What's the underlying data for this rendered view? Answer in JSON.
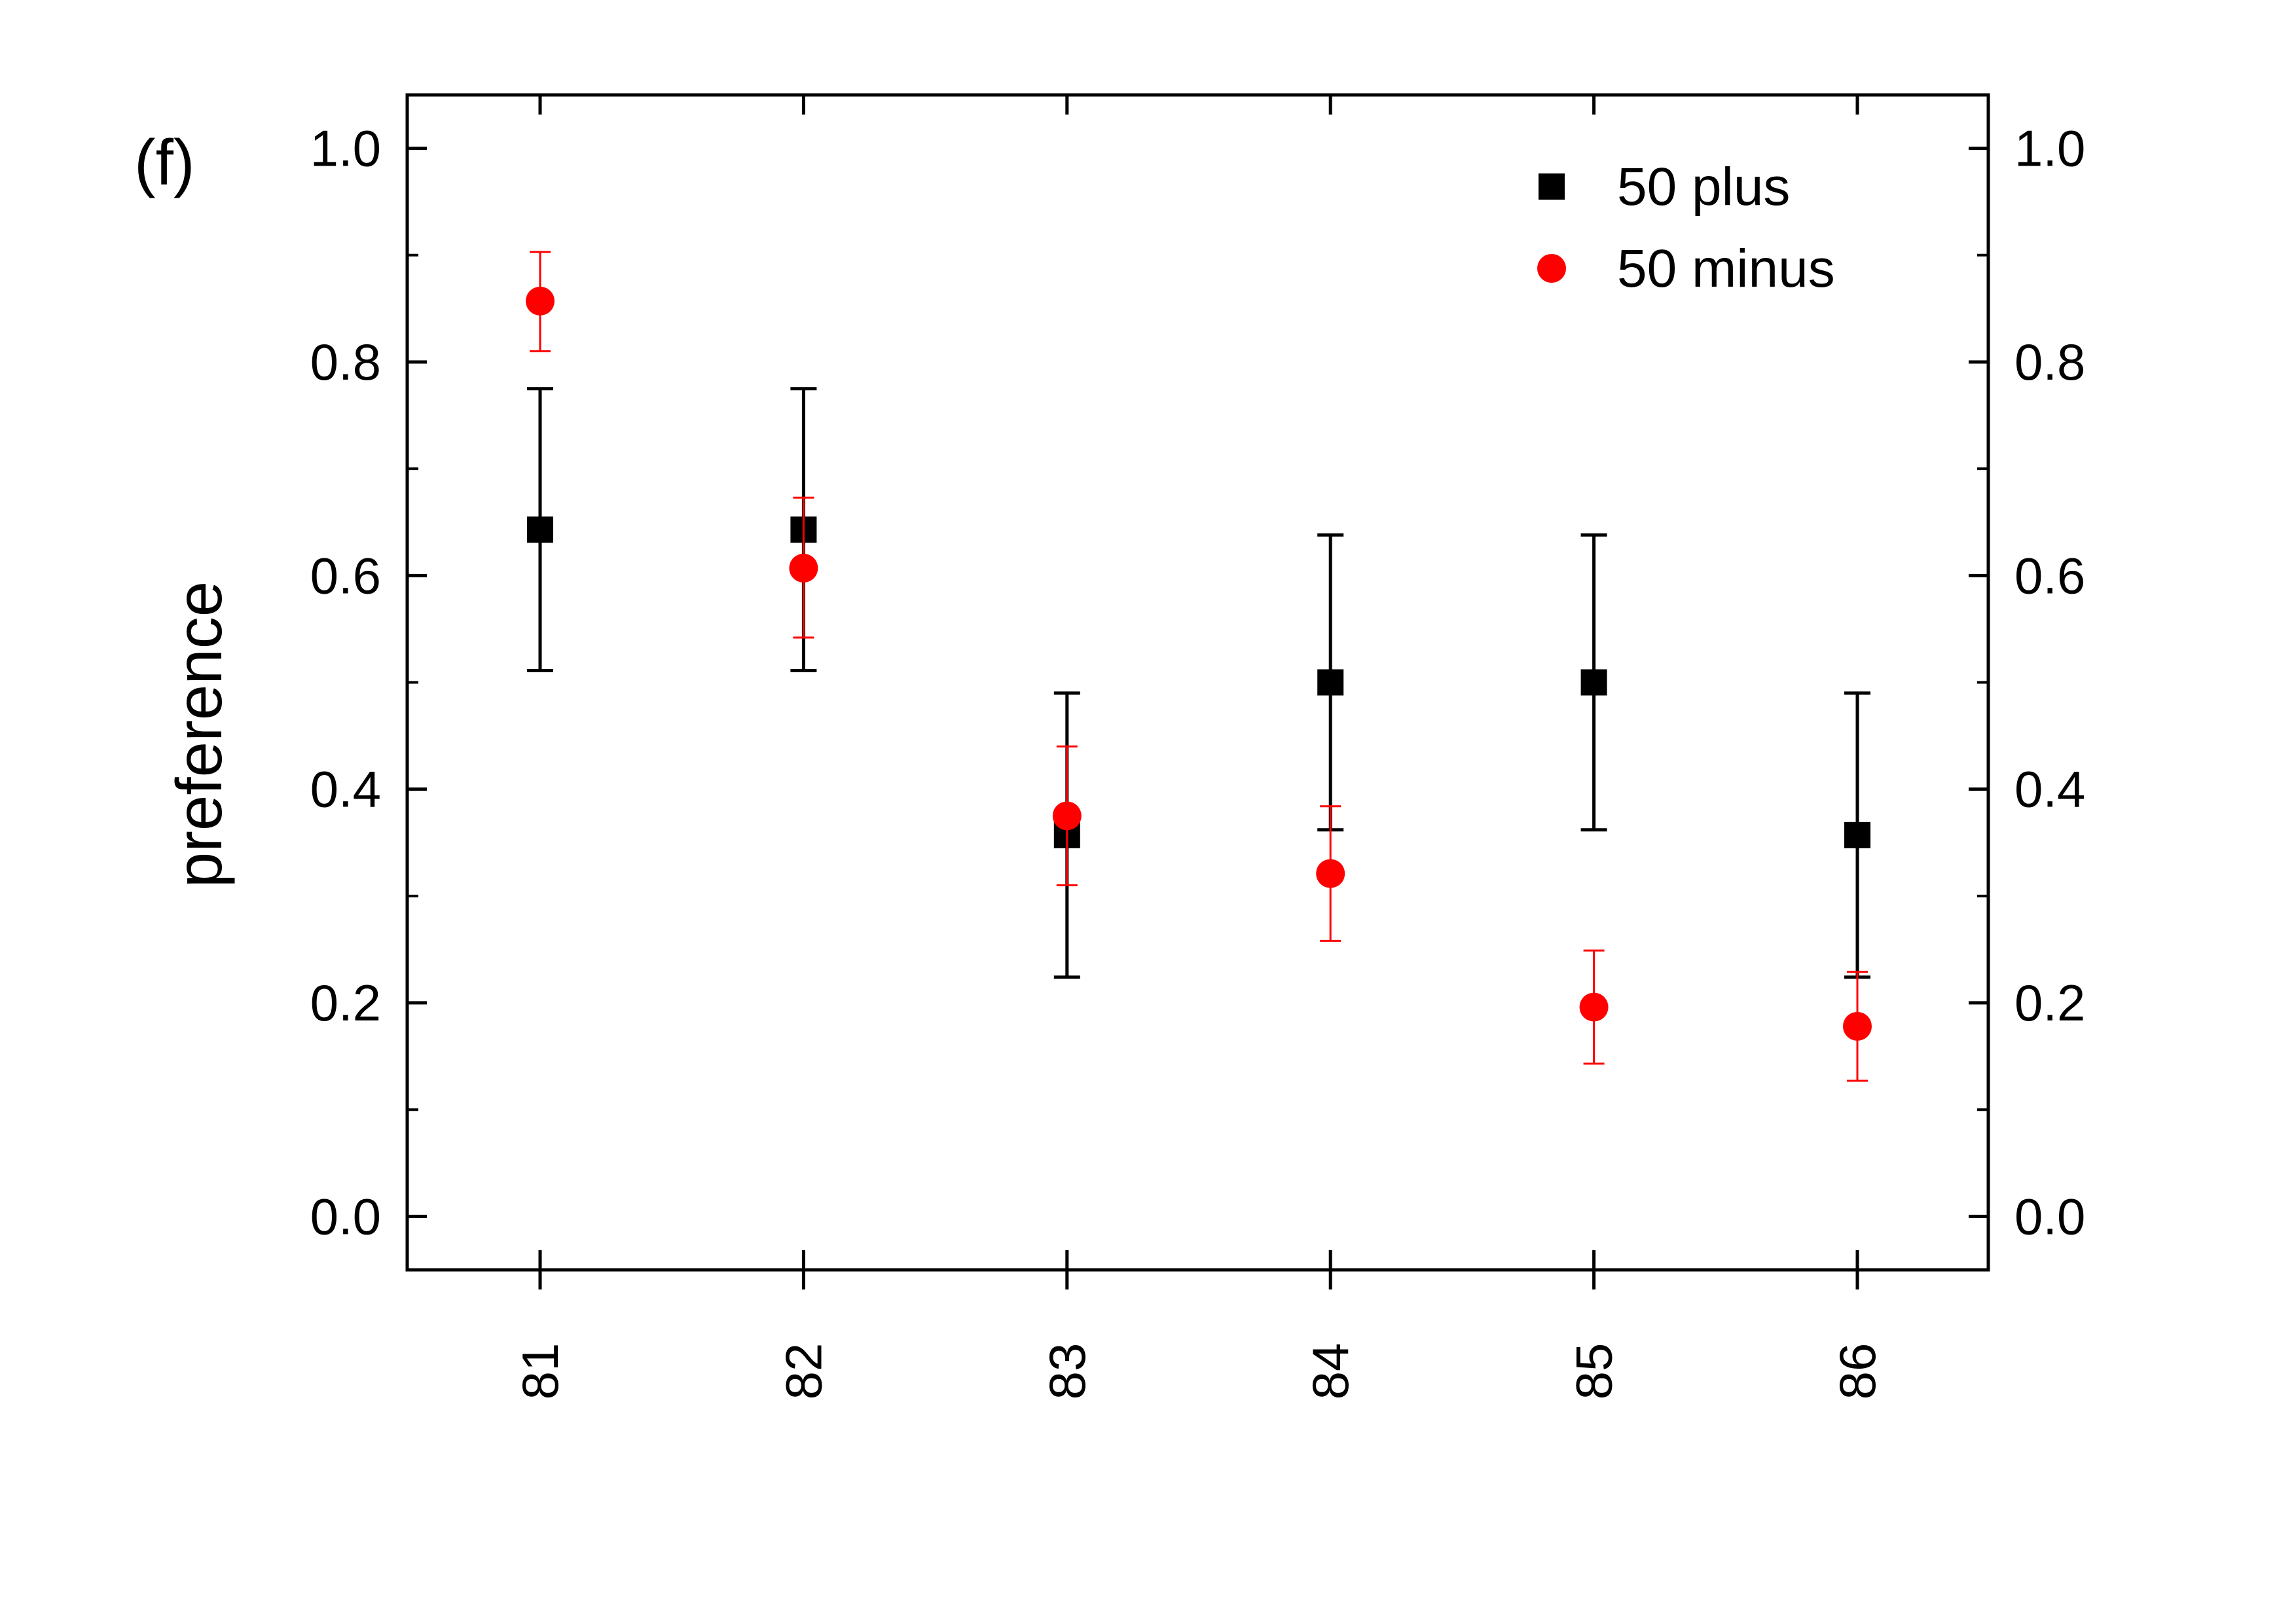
{
  "chart_data": {
    "type": "scatter",
    "panel_label": "(f)",
    "xlabel": "",
    "ylabel": "preference",
    "categories": [
      "81",
      "82",
      "83",
      "84",
      "85",
      "86"
    ],
    "ylim": [
      -0.05,
      1.05
    ],
    "yticks": [
      "0.0",
      "0.2",
      "0.4",
      "0.6",
      "0.8",
      "1.0"
    ],
    "ytick_values": [
      0.0,
      0.2,
      0.4,
      0.6,
      0.8,
      1.0
    ],
    "right_axis_labels": true,
    "grid": false,
    "legend_position": "top-right",
    "series": [
      {
        "name": "50 plus",
        "marker": "square",
        "color": "#000000",
        "values": [
          0.643,
          0.643,
          0.357,
          0.5,
          0.5,
          0.357
        ],
        "err_low": [
          0.511,
          0.511,
          0.224,
          0.362,
          0.362,
          0.224
        ],
        "err_high": [
          0.775,
          0.775,
          0.49,
          0.638,
          0.638,
          0.49
        ]
      },
      {
        "name": "50 minus",
        "marker": "circle",
        "color": "#ff0000",
        "values": [
          0.857,
          0.607,
          0.375,
          0.321,
          0.196,
          0.178
        ],
        "err_low": [
          0.81,
          0.542,
          0.31,
          0.258,
          0.143,
          0.127
        ],
        "err_high": [
          0.903,
          0.673,
          0.44,
          0.384,
          0.249,
          0.229
        ]
      }
    ]
  }
}
